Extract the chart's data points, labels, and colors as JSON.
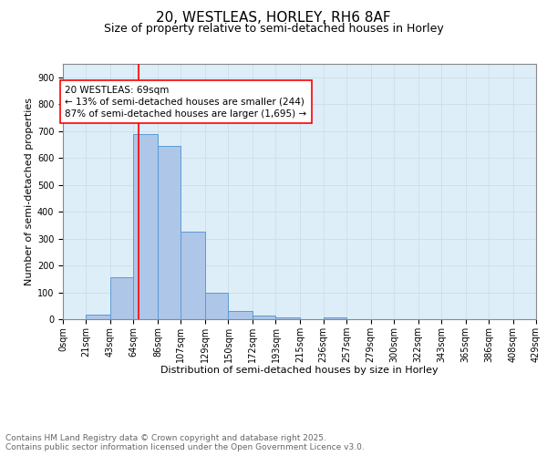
{
  "title1": "20, WESTLEAS, HORLEY, RH6 8AF",
  "title2": "Size of property relative to semi-detached houses in Horley",
  "xlabel": "Distribution of semi-detached houses by size in Horley",
  "ylabel": "Number of semi-detached properties",
  "bin_labels": [
    "0sqm",
    "21sqm",
    "43sqm",
    "64sqm",
    "86sqm",
    "107sqm",
    "129sqm",
    "150sqm",
    "172sqm",
    "193sqm",
    "215sqm",
    "236sqm",
    "257sqm",
    "279sqm",
    "300sqm",
    "322sqm",
    "343sqm",
    "365sqm",
    "386sqm",
    "408sqm",
    "429sqm"
  ],
  "bin_edges": [
    0,
    21,
    43,
    64,
    86,
    107,
    129,
    150,
    172,
    193,
    215,
    236,
    257,
    279,
    300,
    322,
    343,
    365,
    386,
    408,
    429
  ],
  "bar_heights": [
    0,
    18,
    155,
    690,
    645,
    325,
    100,
    30,
    15,
    8,
    0,
    8,
    0,
    0,
    0,
    0,
    0,
    0,
    0,
    0
  ],
  "bar_color": "#aec6e8",
  "bar_edge_color": "#5b9bd5",
  "vline_x": 69,
  "vline_color": "red",
  "annotation_text": "20 WESTLEAS: 69sqm\n← 13% of semi-detached houses are smaller (244)\n87% of semi-detached houses are larger (1,695) →",
  "ylim": [
    0,
    950
  ],
  "yticks": [
    0,
    100,
    200,
    300,
    400,
    500,
    600,
    700,
    800,
    900
  ],
  "grid_color": "#d0dce8",
  "bg_color": "#ddeef8",
  "footer_text": "Contains HM Land Registry data © Crown copyright and database right 2025.\nContains public sector information licensed under the Open Government Licence v3.0.",
  "title1_fontsize": 11,
  "title2_fontsize": 9,
  "axis_label_fontsize": 8,
  "tick_fontsize": 7,
  "annotation_fontsize": 7.5,
  "footer_fontsize": 6.5
}
